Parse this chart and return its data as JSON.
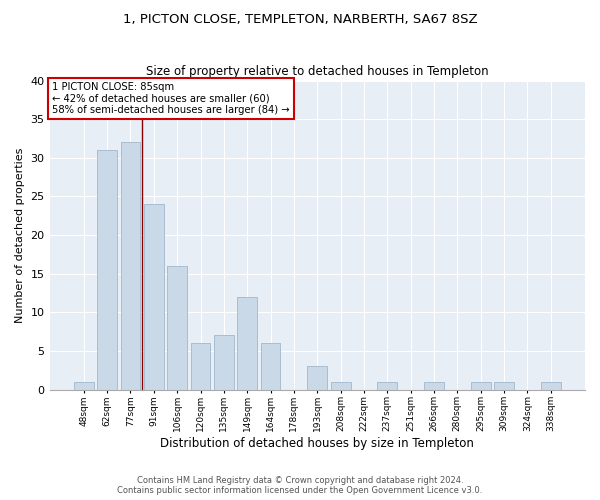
{
  "title1": "1, PICTON CLOSE, TEMPLETON, NARBERTH, SA67 8SZ",
  "title2": "Size of property relative to detached houses in Templeton",
  "xlabel": "Distribution of detached houses by size in Templeton",
  "ylabel": "Number of detached properties",
  "categories": [
    "48sqm",
    "62sqm",
    "77sqm",
    "91sqm",
    "106sqm",
    "120sqm",
    "135sqm",
    "149sqm",
    "164sqm",
    "178sqm",
    "193sqm",
    "208sqm",
    "222sqm",
    "237sqm",
    "251sqm",
    "266sqm",
    "280sqm",
    "295sqm",
    "309sqm",
    "324sqm",
    "338sqm"
  ],
  "values": [
    1,
    31,
    32,
    24,
    16,
    6,
    7,
    12,
    6,
    0,
    3,
    1,
    0,
    1,
    0,
    1,
    0,
    1,
    1,
    0,
    1
  ],
  "bar_color": "#c9d9e8",
  "bar_edge_color": "#a0b8cc",
  "highlight_line_color": "#8B0000",
  "annotation_title": "1 PICTON CLOSE: 85sqm",
  "annotation_line1": "← 42% of detached houses are smaller (60)",
  "annotation_line2": "58% of semi-detached houses are larger (84) →",
  "annotation_box_color": "#ffffff",
  "annotation_box_edge": "#cc0000",
  "ylim": [
    0,
    40
  ],
  "yticks": [
    0,
    5,
    10,
    15,
    20,
    25,
    30,
    35,
    40
  ],
  "background_color": "#e8eef5",
  "footer1": "Contains HM Land Registry data © Crown copyright and database right 2024.",
  "footer2": "Contains public sector information licensed under the Open Government Licence v3.0."
}
